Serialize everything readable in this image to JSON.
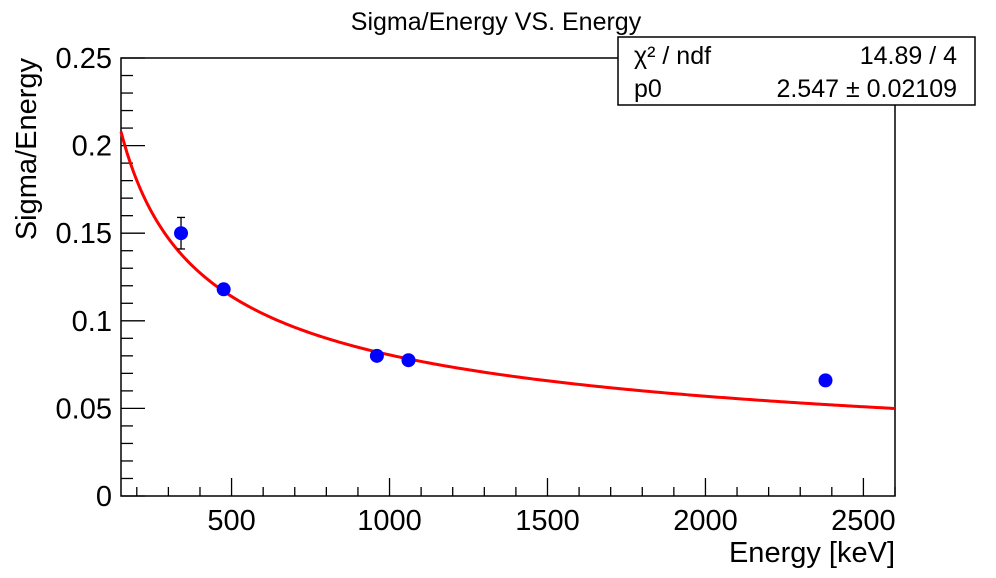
{
  "chart_data": {
    "type": "scatter",
    "title": "Sigma/Energy VS. Energy",
    "xlabel": "Energy [keV]",
    "ylabel": "Sigma/Energy",
    "xlim": [
      150,
      2600
    ],
    "ylim": [
      0,
      0.25
    ],
    "x_ticks": [
      500,
      1000,
      1500,
      2000,
      2500
    ],
    "x_tick_labels": [
      "500",
      "1000",
      "1500",
      "2000",
      "2500"
    ],
    "y_ticks": [
      0,
      0.05,
      0.1,
      0.15,
      0.2,
      0.25
    ],
    "y_tick_labels": [
      "0",
      "0.05",
      "0.1",
      "0.15",
      "0.2",
      "0.25"
    ],
    "grid": false,
    "series": [
      {
        "type": "scatter",
        "color": "#0000ff",
        "points": [
          {
            "x": 340,
            "y": 0.15,
            "yerr": 0.009
          },
          {
            "x": 475,
            "y": 0.118,
            "yerr": 0.002
          },
          {
            "x": 960,
            "y": 0.08,
            "yerr": 0.002
          },
          {
            "x": 1060,
            "y": 0.0775,
            "yerr": 0.002
          },
          {
            "x": 2380,
            "y": 0.066,
            "yerr": 0.002
          }
        ]
      },
      {
        "type": "line",
        "color": "#ff0000",
        "function": "p0/sqrt(x)",
        "p0": 2.547,
        "x_range": [
          150,
          2600
        ]
      }
    ],
    "stats_box": {
      "rows": [
        {
          "label": "χ² / ndf",
          "value": "14.89 / 4"
        },
        {
          "label": "p0",
          "value": "2.547 ± 0.02109"
        }
      ]
    }
  }
}
